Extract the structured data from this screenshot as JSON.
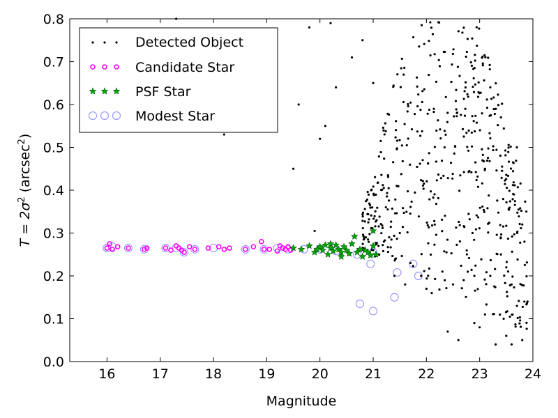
{
  "chart_data": {
    "type": "scatter",
    "xlabel": "Magnitude",
    "ylabel": {
      "main": "T = 2σ",
      "sup1": "2",
      "paren": " (arcsec",
      "sup2": "2",
      "close": ")"
    },
    "xlim": [
      15.3,
      24.0
    ],
    "ylim": [
      0.0,
      0.8
    ],
    "xticks": [
      16,
      17,
      18,
      19,
      20,
      21,
      22,
      23,
      24
    ],
    "yticks": [
      0.0,
      0.1,
      0.2,
      0.3,
      0.4,
      0.5,
      0.6,
      0.7,
      0.8
    ],
    "ytick_labels": [
      "0.0",
      "0.1",
      "0.2",
      "0.3",
      "0.4",
      "0.5",
      "0.6",
      "0.7",
      "0.8"
    ],
    "grid": false,
    "legend_position": "top-left",
    "colors": {
      "detected": "#000000",
      "candidate": "#ff00ff",
      "psf": "#00aa00",
      "modest": "#9999ff"
    },
    "series": [
      {
        "name": "Detected Object",
        "marker": "dot",
        "points": [
          [
            17.3,
            0.8
          ],
          [
            18.2,
            0.53
          ],
          [
            19.9,
            0.305
          ],
          [
            20.8,
            0.265
          ],
          [
            20.9,
            0.255
          ],
          [
            21.0,
            0.26
          ],
          [
            21.1,
            0.27
          ],
          [
            21.2,
            0.28
          ],
          [
            21.3,
            0.29
          ],
          [
            21.5,
            0.3
          ],
          [
            19.5,
            0.45
          ],
          [
            19.6,
            0.6
          ],
          [
            20.0,
            0.52
          ],
          [
            20.1,
            0.55
          ],
          [
            20.3,
            0.64
          ],
          [
            20.6,
            0.71
          ],
          [
            20.8,
            0.75
          ],
          [
            21.0,
            0.65
          ],
          [
            19.8,
            0.78
          ],
          [
            20.2,
            0.79
          ],
          [
            21.4,
            0.2
          ],
          [
            21.6,
            0.18
          ],
          [
            21.7,
            0.23
          ],
          [
            21.9,
            0.2
          ],
          [
            22.0,
            0.17
          ],
          [
            22.1,
            0.16
          ],
          [
            22.3,
            0.21
          ],
          [
            22.5,
            0.18
          ],
          [
            22.7,
            0.19
          ],
          [
            22.9,
            0.2
          ],
          [
            22.4,
            0.07
          ],
          [
            22.6,
            0.05
          ],
          [
            22.9,
            0.09
          ],
          [
            23.0,
            0.08
          ],
          [
            23.1,
            0.11
          ],
          [
            23.3,
            0.04
          ],
          [
            23.5,
            0.06
          ],
          [
            23.6,
            0.04
          ],
          [
            23.8,
            0.05
          ],
          [
            23.9,
            0.14
          ],
          [
            23.2,
            0.2
          ],
          [
            23.4,
            0.25
          ],
          [
            23.5,
            0.22
          ],
          [
            23.6,
            0.18
          ],
          [
            23.7,
            0.13
          ],
          [
            23.8,
            0.32
          ],
          [
            23.7,
            0.5
          ],
          [
            23.4,
            0.57
          ],
          [
            23.2,
            0.64
          ],
          [
            23.1,
            0.45
          ]
        ],
        "region": {
          "xmin": 20.8,
          "xmax": 23.9,
          "ymin": 0.04,
          "ymax": 0.8,
          "count": 520
        }
      },
      {
        "name": "Candidate Star",
        "marker": "circle-small",
        "points": [
          [
            16.0,
            0.265
          ],
          [
            16.05,
            0.275
          ],
          [
            16.1,
            0.262
          ],
          [
            16.2,
            0.268
          ],
          [
            16.4,
            0.265
          ],
          [
            16.7,
            0.262
          ],
          [
            16.75,
            0.265
          ],
          [
            17.1,
            0.265
          ],
          [
            17.2,
            0.26
          ],
          [
            17.3,
            0.27
          ],
          [
            17.35,
            0.265
          ],
          [
            17.4,
            0.26
          ],
          [
            17.45,
            0.255
          ],
          [
            17.55,
            0.268
          ],
          [
            17.65,
            0.262
          ],
          [
            17.9,
            0.265
          ],
          [
            18.1,
            0.268
          ],
          [
            18.2,
            0.262
          ],
          [
            18.3,
            0.265
          ],
          [
            18.6,
            0.262
          ],
          [
            18.75,
            0.268
          ],
          [
            18.9,
            0.28
          ],
          [
            18.95,
            0.262
          ],
          [
            19.05,
            0.262
          ],
          [
            19.2,
            0.258
          ],
          [
            19.25,
            0.27
          ],
          [
            19.3,
            0.265
          ],
          [
            19.35,
            0.262
          ],
          [
            19.4,
            0.268
          ],
          [
            19.45,
            0.26
          ]
        ]
      },
      {
        "name": "PSF Star",
        "marker": "star",
        "points": [
          [
            19.5,
            0.265
          ],
          [
            19.65,
            0.262
          ],
          [
            19.8,
            0.27
          ],
          [
            19.9,
            0.255
          ],
          [
            20.0,
            0.268
          ],
          [
            20.05,
            0.26
          ],
          [
            20.1,
            0.272
          ],
          [
            20.15,
            0.25
          ],
          [
            20.2,
            0.265
          ],
          [
            20.25,
            0.258
          ],
          [
            20.3,
            0.272
          ],
          [
            20.35,
            0.262
          ],
          [
            20.4,
            0.255
          ],
          [
            20.45,
            0.268
          ],
          [
            20.5,
            0.26
          ],
          [
            20.55,
            0.252
          ],
          [
            20.6,
            0.275
          ],
          [
            20.65,
            0.292
          ],
          [
            20.7,
            0.255
          ],
          [
            20.75,
            0.262
          ],
          [
            20.8,
            0.245
          ],
          [
            20.85,
            0.26
          ],
          [
            20.9,
            0.255
          ],
          [
            20.95,
            0.248
          ],
          [
            21.0,
            0.305
          ],
          [
            21.0,
            0.27
          ],
          [
            21.05,
            0.25
          ],
          [
            20.2,
            0.275
          ],
          [
            19.95,
            0.262
          ],
          [
            20.4,
            0.245
          ]
        ]
      },
      {
        "name": "Modest Star",
        "marker": "circle-large",
        "points": [
          [
            16.0,
            0.265
          ],
          [
            16.1,
            0.268
          ],
          [
            16.4,
            0.265
          ],
          [
            16.7,
            0.262
          ],
          [
            17.1,
            0.265
          ],
          [
            17.3,
            0.265
          ],
          [
            17.45,
            0.255
          ],
          [
            17.65,
            0.262
          ],
          [
            18.0,
            0.265
          ],
          [
            18.6,
            0.262
          ],
          [
            18.95,
            0.262
          ],
          [
            19.2,
            0.265
          ],
          [
            19.4,
            0.262
          ],
          [
            19.7,
            0.262
          ],
          [
            20.0,
            0.262
          ],
          [
            20.3,
            0.258
          ],
          [
            20.7,
            0.25
          ],
          [
            20.95,
            0.228
          ],
          [
            21.45,
            0.208
          ],
          [
            21.4,
            0.15
          ],
          [
            21.75,
            0.228
          ],
          [
            21.85,
            0.2
          ],
          [
            20.75,
            0.135
          ],
          [
            21.0,
            0.118
          ],
          [
            21.0,
            0.255
          ]
        ]
      }
    ]
  }
}
